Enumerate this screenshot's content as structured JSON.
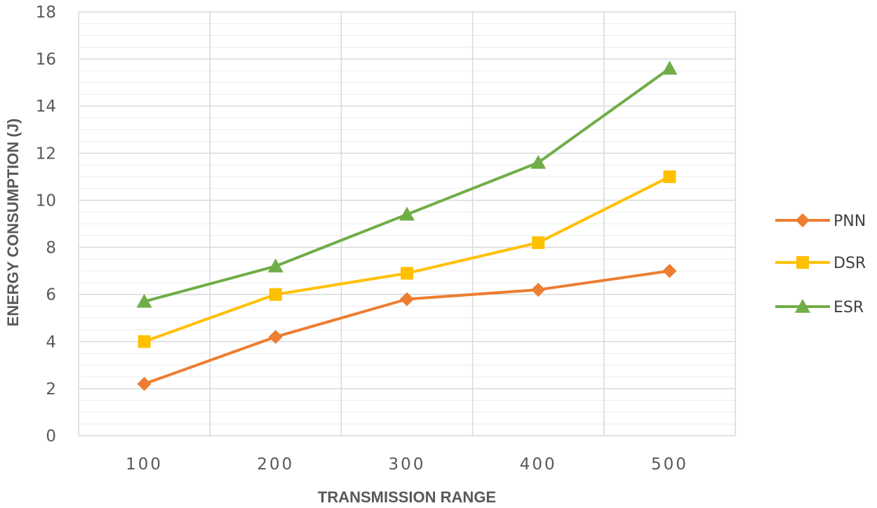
{
  "chart_data": {
    "type": "line",
    "categories": [
      "100",
      "200",
      "300",
      "400",
      "500"
    ],
    "xlabel": "TRANSMISSION RANGE",
    "ylabel": "ENERGY CONSUMPTION (J)",
    "ylim": [
      0,
      18
    ],
    "yticks": [
      "0",
      "2",
      "4",
      "6",
      "8",
      "10",
      "12",
      "14",
      "16",
      "18"
    ],
    "grid": true,
    "legend_position": "right",
    "series": [
      {
        "name": "PNN",
        "values": [
          2.2,
          4.2,
          5.8,
          6.2,
          7.0
        ],
        "color": "#ED7D31",
        "marker": "diamond"
      },
      {
        "name": "DSR",
        "values": [
          4.0,
          6.0,
          6.9,
          8.2,
          11.0
        ],
        "color": "#FFC000",
        "marker": "square"
      },
      {
        "name": "ESR",
        "values": [
          5.7,
          7.2,
          9.4,
          11.6,
          15.6
        ],
        "color": "#70AD47",
        "marker": "triangle"
      }
    ]
  }
}
